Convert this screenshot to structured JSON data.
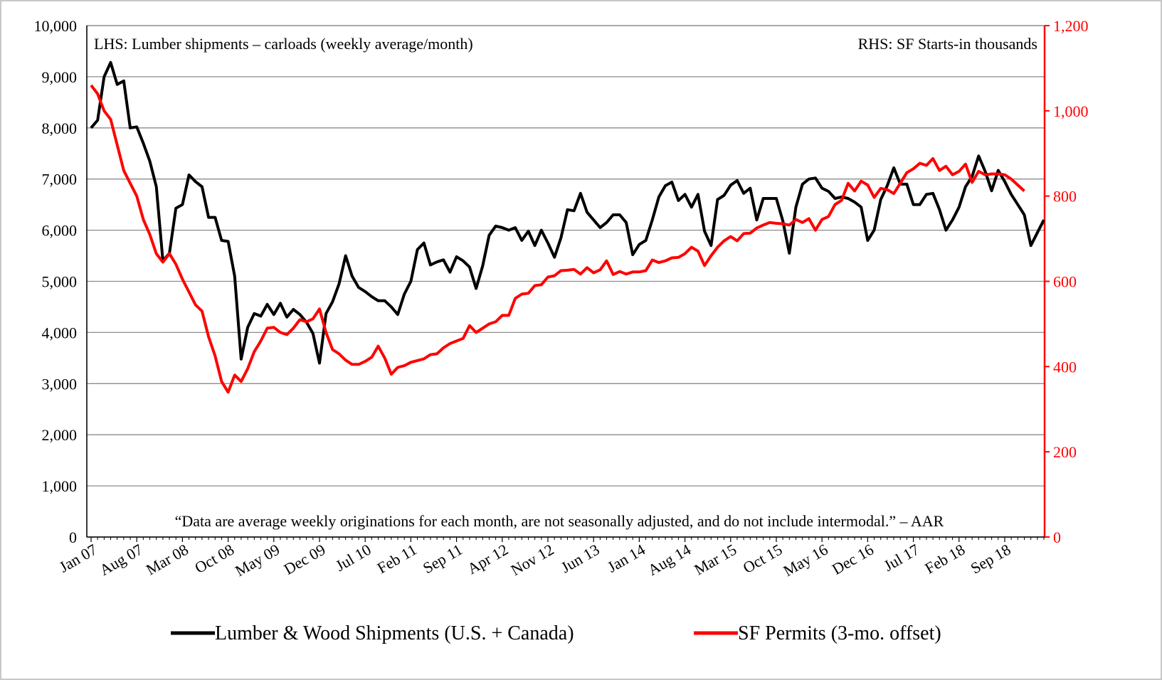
{
  "chart_data": {
    "type": "line",
    "annotations": [
      "LHS: Lumber shipments – carloads (weekly  average/month)",
      "RHS: SF Starts-in thousands",
      "“Data are average weekly originations for each month, are not seasonally adjusted, and do not include intermodal.” –  AAR"
    ],
    "categories": [
      "Jan 07",
      null,
      null,
      null,
      null,
      null,
      null,
      "Aug 07",
      null,
      null,
      null,
      null,
      null,
      null,
      "Mar 08",
      null,
      null,
      null,
      null,
      null,
      null,
      "Oct 08",
      null,
      null,
      null,
      null,
      null,
      null,
      "May 09",
      null,
      null,
      null,
      null,
      null,
      null,
      "Dec 09",
      null,
      null,
      null,
      null,
      null,
      null,
      "Jul 10",
      null,
      null,
      null,
      null,
      null,
      null,
      "Feb 11",
      null,
      null,
      null,
      null,
      null,
      null,
      "Sep 11",
      null,
      null,
      null,
      null,
      null,
      null,
      "Apr 12",
      null,
      null,
      null,
      null,
      null,
      null,
      "Nov 12",
      null,
      null,
      null,
      null,
      null,
      null,
      "Jun 13",
      null,
      null,
      null,
      null,
      null,
      null,
      "Jan 14",
      null,
      null,
      null,
      null,
      null,
      null,
      "Aug 14",
      null,
      null,
      null,
      null,
      null,
      null,
      "Mar 15",
      null,
      null,
      null,
      null,
      null,
      null,
      "Oct 15",
      null,
      null,
      null,
      null,
      null,
      null,
      "May 16",
      null,
      null,
      null,
      null,
      null,
      null,
      "Dec 16",
      null,
      null,
      null,
      null,
      null,
      null,
      "Jul 17",
      null,
      null,
      null,
      null,
      null,
      null,
      "Feb 18",
      null,
      null,
      null,
      null,
      null,
      null,
      "Sep 18",
      null,
      null,
      null,
      null,
      null,
      null
    ],
    "series": [
      {
        "name": "Lumber & Wood Shipments (U.S. + Canada)",
        "color": "#000000",
        "values": [
          8000,
          8150,
          9000,
          9280,
          8850,
          8920,
          8000,
          8020,
          7700,
          7350,
          6850,
          5400,
          5550,
          6430,
          6500,
          7080,
          6950,
          6850,
          6250,
          6250,
          5800,
          5780,
          5100,
          3480,
          4100,
          4370,
          4320,
          4550,
          4350,
          4570,
          4300,
          4450,
          4350,
          4200,
          3980,
          3400,
          4370,
          4600,
          4950,
          5500,
          5100,
          4880,
          4800,
          4700,
          4620,
          4620,
          4500,
          4350,
          4750,
          5000,
          5620,
          5750,
          5320,
          5380,
          5420,
          5180,
          5480,
          5400,
          5280,
          4860,
          5300,
          5900,
          6080,
          6050,
          6000,
          6050,
          5800,
          5980,
          5700,
          6000,
          5750,
          5470,
          5850,
          6400,
          6380,
          6720,
          6350,
          6200,
          6050,
          6150,
          6300,
          6300,
          6150,
          5520,
          5720,
          5800,
          6200,
          6650,
          6870,
          6940,
          6580,
          6700,
          6450,
          6700,
          5980,
          5700,
          6600,
          6680,
          6880,
          6970,
          6720,
          6820,
          6200,
          6620,
          6620,
          6620,
          6180,
          5550,
          6450,
          6900,
          7000,
          7020,
          6820,
          6760,
          6620,
          6650,
          6620,
          6550,
          6450,
          5800,
          6000,
          6600,
          6870,
          7220,
          6900,
          6900,
          6500,
          6500,
          6700,
          6720,
          6400,
          6000,
          6200,
          6450,
          6850,
          7050,
          7450,
          7150,
          6770,
          7170,
          6950,
          6700,
          6500,
          6300,
          5700,
          5950,
          6200
        ]
      },
      {
        "name": "SF Permits (3-mo. offset)",
        "color": "#ff0000",
        "axis": "y2",
        "values": [
          1060,
          1040,
          1000,
          980,
          920,
          860,
          830,
          800,
          745,
          710,
          665,
          645,
          665,
          640,
          605,
          575,
          545,
          530,
          470,
          425,
          365,
          340,
          380,
          365,
          395,
          435,
          460,
          490,
          492,
          480,
          475,
          490,
          510,
          505,
          512,
          535,
          480,
          440,
          430,
          415,
          405,
          405,
          412,
          422,
          448,
          420,
          382,
          398,
          402,
          410,
          414,
          418,
          428,
          430,
          444,
          454,
          460,
          466,
          496,
          480,
          490,
          500,
          505,
          520,
          520,
          560,
          570,
          572,
          590,
          592,
          610,
          613,
          625,
          626,
          628,
          617,
          632,
          620,
          627,
          648,
          616,
          623,
          617,
          622,
          622,
          625,
          650,
          644,
          648,
          655,
          656,
          665,
          680,
          671,
          637,
          660,
          680,
          695,
          705,
          695,
          712,
          713,
          725,
          732,
          738,
          736,
          735,
          732,
          745,
          738,
          747,
          720,
          745,
          752,
          780,
          790,
          830,
          812,
          835,
          826,
          797,
          818,
          815,
          806,
          830,
          855,
          864,
          877,
          872,
          888,
          860,
          870,
          850,
          858,
          875,
          832,
          858,
          850,
          852,
          852,
          850,
          840,
          826,
          812,
          null,
          null,
          null
        ]
      }
    ],
    "ylim": [
      0,
      10000
    ],
    "yticks": [
      0,
      {
        "value": 1000,
        "label": "1,000"
      },
      {
        "value": 2000,
        "label": "2,000"
      },
      {
        "value": 3000,
        "label": "3,000"
      },
      {
        "value": 4000,
        "label": "4,000"
      },
      {
        "value": 5000,
        "label": "5,000"
      },
      {
        "value": 6000,
        "label": "6,000"
      },
      {
        "value": 7000,
        "label": "7,000"
      },
      {
        "value": 8000,
        "label": "8,000"
      },
      {
        "value": 9000,
        "label": "9,000"
      },
      {
        "value": 10000,
        "label": "10,000"
      }
    ],
    "y2lim": [
      0,
      1200
    ],
    "y2ticks": [
      0,
      200,
      400,
      600,
      800,
      {
        "value": 1000,
        "label": "1,000"
      },
      {
        "value": 1200,
        "label": "1,200"
      }
    ],
    "y2_color": "#ff0000",
    "grid": true,
    "legend": "bottom"
  }
}
